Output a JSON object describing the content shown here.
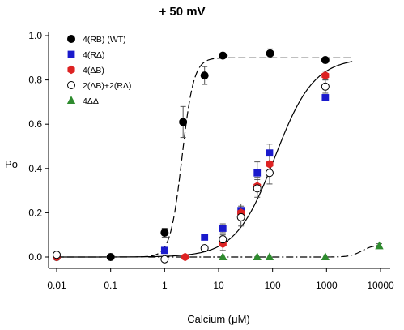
{
  "chart_data": {
    "type": "scatter",
    "title": "+ 50 mV",
    "xlabel": "Calcium (μM)",
    "ylabel": "Po",
    "xscale": "log",
    "xlim": [
      0.01,
      10000
    ],
    "ylim": [
      0,
      1.0
    ],
    "xticks": [
      0.01,
      0.1,
      1,
      10,
      100,
      1000,
      10000
    ],
    "xtick_labels": [
      "0.01",
      "0.1",
      "1",
      "10",
      "100",
      "1000",
      "10000"
    ],
    "yticks": [
      0,
      0.2,
      0.4,
      0.6,
      0.8,
      1.0
    ],
    "ytick_labels": [
      "0.0",
      "0.2",
      "0.4",
      "0.6",
      "0.8",
      "1.0"
    ],
    "grid": false,
    "legend_position": "top-left",
    "series": [
      {
        "name": "4(RB) (WT)",
        "marker": "circle",
        "color": "#000000",
        "fill": "#000000",
        "x": [
          0.01,
          0.1,
          1.0,
          2.2,
          5.5,
          12,
          90,
          950
        ],
        "y": [
          0.0,
          0.0,
          0.11,
          0.61,
          0.82,
          0.91,
          0.92,
          0.89
        ],
        "err": [
          0.01,
          0.01,
          0.02,
          0.07,
          0.04,
          0.01,
          0.02,
          0.01
        ]
      },
      {
        "name": "4(RΔ)",
        "marker": "square",
        "color": "#1a1acc",
        "fill": "#1a1acc",
        "x": [
          1.0,
          5.5,
          12,
          26,
          52,
          88,
          950
        ],
        "y": [
          0.03,
          0.09,
          0.13,
          0.21,
          0.38,
          0.47,
          0.72
        ],
        "err": [
          0.0,
          0.0,
          0.02,
          0.03,
          0.05,
          0.04,
          0.0
        ]
      },
      {
        "name": "4(ΔB)",
        "marker": "hexagon",
        "color": "#dd2222",
        "fill": "#dd2222",
        "x": [
          0.01,
          2.4,
          12,
          26,
          52,
          88,
          950
        ],
        "y": [
          0.0,
          0.0,
          0.06,
          0.2,
          0.32,
          0.42,
          0.82
        ],
        "err": [
          0.01,
          0.0,
          0.03,
          0.03,
          0.04,
          0.04,
          0.02
        ]
      },
      {
        "name": "2(ΔB)+2(RΔ)",
        "marker": "open-circle",
        "color": "#000000",
        "fill": "#ffffff",
        "x": [
          0.01,
          1.0,
          5.5,
          12,
          26,
          52,
          88,
          950
        ],
        "y": [
          0.01,
          -0.01,
          0.04,
          0.08,
          0.18,
          0.31,
          0.38,
          0.77
        ],
        "err": [
          0.0,
          0.0,
          0.0,
          0.02,
          0.04,
          0.04,
          0.05,
          0.03
        ]
      },
      {
        "name": "4ΔΔ",
        "marker": "triangle",
        "color": "#2e8b2e",
        "fill": "#2e8b2e",
        "x": [
          12,
          52,
          88,
          950,
          9500
        ],
        "y": [
          0.0,
          0.0,
          0.0,
          0.0,
          0.05
        ],
        "err": [
          0.0,
          0.0,
          0.0,
          0.0,
          0.01
        ]
      }
    ],
    "fits": [
      {
        "for": "4(RB) (WT)",
        "style": "dashed",
        "x_range": [
          0.01,
          3000
        ],
        "top": 0.9,
        "ec50": 2.1,
        "n": 4.0,
        "bottom": 0.0
      },
      {
        "for": "4(ΔB)",
        "style": "solid",
        "x_range": [
          0.01,
          3000
        ],
        "top": 0.9,
        "ec50": 110,
        "n": 1.2,
        "bottom": 0.0
      },
      {
        "for": "4ΔΔ",
        "style": "dash-dot",
        "x_range": [
          0.5,
          10000
        ],
        "top": 0.055,
        "ec50": 4500,
        "n": 4.0,
        "bottom": 0.0
      }
    ]
  }
}
